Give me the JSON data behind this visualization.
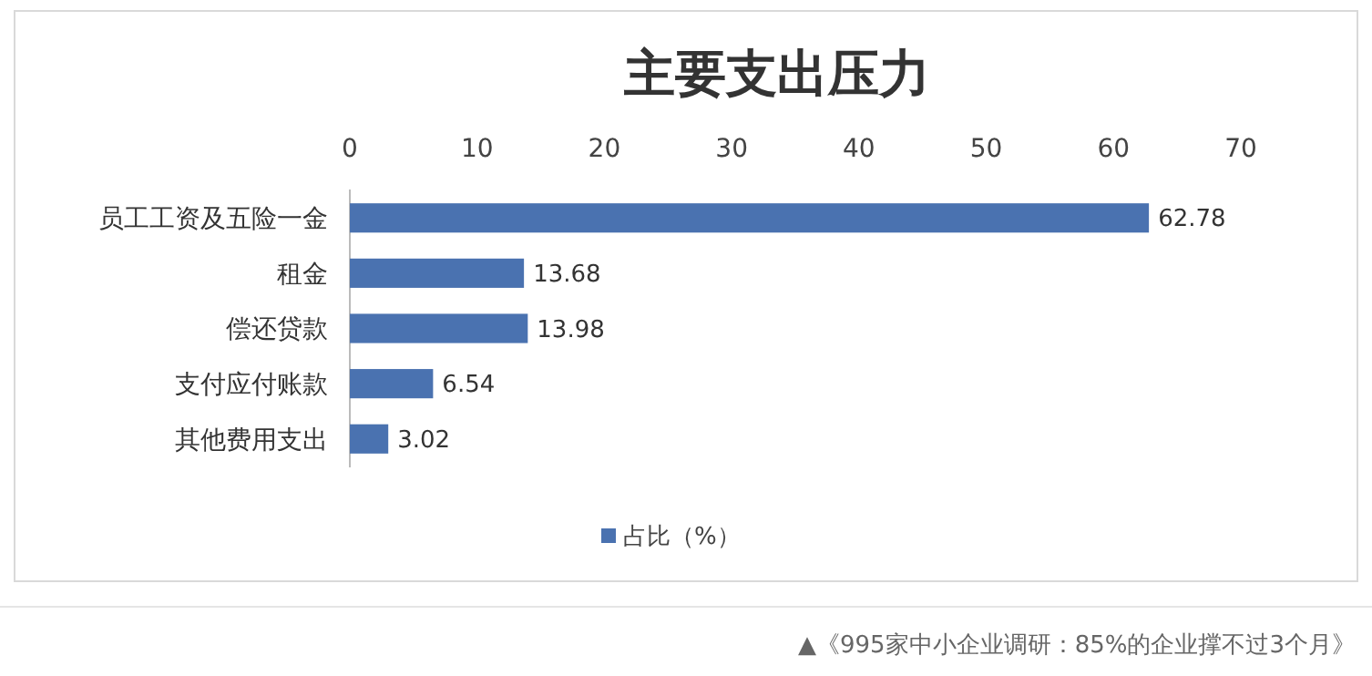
{
  "chart_data": {
    "type": "bar",
    "orientation": "horizontal",
    "title": "主要支出压力",
    "categories": [
      "员工工资及五险一金",
      "租金",
      "偿还贷款",
      "支付应付账款",
      "其他费用支出"
    ],
    "series": [
      {
        "name": "占比（%）",
        "color": "#4a72b0",
        "values": [
          62.78,
          13.68,
          13.98,
          6.54,
          3.02
        ]
      }
    ],
    "xlim": [
      0,
      70
    ],
    "xticks": [
      0,
      10,
      20,
      30,
      40,
      50,
      60,
      70
    ],
    "data_labels": true,
    "legend": "bottom",
    "grid": false,
    "annotations": [
      "▲《995家中小企业调研：85%的企业撑不过3个月》"
    ]
  }
}
